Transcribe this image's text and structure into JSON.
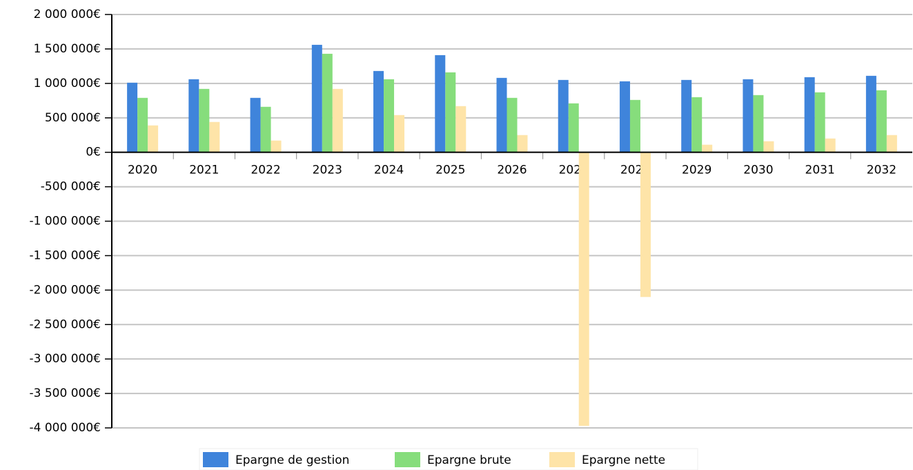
{
  "chart_data": {
    "type": "bar",
    "categories": [
      "2020",
      "2021",
      "2022",
      "2023",
      "2024",
      "2025",
      "2026",
      "2027",
      "2028",
      "2029",
      "2030",
      "2031",
      "2032"
    ],
    "series": [
      {
        "name": "Epargne de gestion",
        "color": "#3f84db",
        "values": [
          1010000,
          1060000,
          790000,
          1560000,
          1180000,
          1410000,
          1080000,
          1050000,
          1030000,
          1050000,
          1060000,
          1090000,
          1110000
        ]
      },
      {
        "name": "Epargne brute",
        "color": "#86dd7c",
        "values": [
          790000,
          920000,
          660000,
          1430000,
          1060000,
          1160000,
          790000,
          710000,
          760000,
          800000,
          830000,
          870000,
          900000
        ]
      },
      {
        "name": "Epargne nette",
        "color": "#fee4a8",
        "values": [
          390000,
          440000,
          170000,
          920000,
          540000,
          670000,
          250000,
          -3970000,
          -2100000,
          110000,
          160000,
          200000,
          250000
        ]
      }
    ],
    "ylim": [
      -4000000,
      2000000
    ],
    "yticks": [
      {
        "value": 2000000,
        "label": "2 000 000€"
      },
      {
        "value": 1500000,
        "label": "1 500 000€"
      },
      {
        "value": 1000000,
        "label": "1 000 000€"
      },
      {
        "value": 500000,
        "label": "500 000€"
      },
      {
        "value": 0,
        "label": "0€"
      },
      {
        "value": -500000,
        "label": "-500 000€"
      },
      {
        "value": -1000000,
        "label": "-1 000 000€"
      },
      {
        "value": -1500000,
        "label": "-1 500 000€"
      },
      {
        "value": -2000000,
        "label": "-2 000 000€"
      },
      {
        "value": -2500000,
        "label": "-2 500 000€"
      },
      {
        "value": -3000000,
        "label": "-3 000 000€"
      },
      {
        "value": -3500000,
        "label": "-3 500 000€"
      },
      {
        "value": -4000000,
        "label": "-4 000 000€"
      }
    ],
    "grid": true,
    "legend": "bottom"
  }
}
